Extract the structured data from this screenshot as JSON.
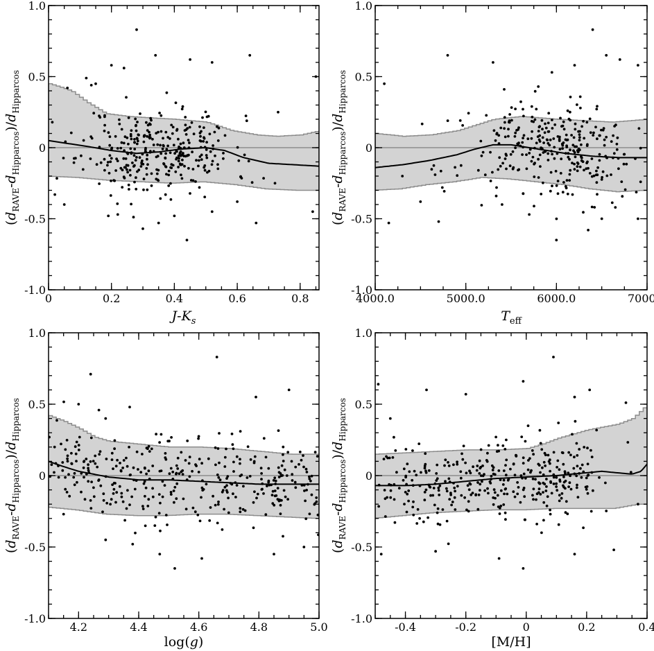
{
  "chart_data": [
    {
      "id": "jk",
      "type": "scatter",
      "xlim": [
        0.0,
        0.86
      ],
      "ylim": [
        -1.0,
        1.0
      ],
      "xticks": [
        0.0,
        0.2,
        0.4,
        0.6,
        0.8
      ],
      "xtick_labels": [
        "0",
        "0.2",
        "0.4",
        "0.6",
        "0.8"
      ],
      "yticks": [
        -1.0,
        -0.5,
        0.0,
        0.5,
        1.0
      ],
      "ytick_labels": [
        "-1.0",
        "-0.5",
        "0",
        "0.5",
        "1.0"
      ],
      "xlabel": "J-K_s",
      "ylabel": "(d_RAVE-d_Hipparcos)/d_Hipparcos",
      "band_upper": [
        [
          0.0,
          0.45
        ],
        [
          0.03,
          0.43
        ],
        [
          0.07,
          0.4
        ],
        [
          0.12,
          0.32
        ],
        [
          0.18,
          0.24
        ],
        [
          0.25,
          0.22
        ],
        [
          0.32,
          0.21
        ],
        [
          0.4,
          0.2
        ],
        [
          0.5,
          0.18
        ],
        [
          0.58,
          0.12
        ],
        [
          0.66,
          0.09
        ],
        [
          0.72,
          0.08
        ],
        [
          0.8,
          0.09
        ],
        [
          0.86,
          0.12
        ]
      ],
      "band_lower": [
        [
          0.0,
          -0.2
        ],
        [
          0.1,
          -0.21
        ],
        [
          0.2,
          -0.23
        ],
        [
          0.3,
          -0.24
        ],
        [
          0.4,
          -0.25
        ],
        [
          0.5,
          -0.24
        ],
        [
          0.6,
          -0.26
        ],
        [
          0.7,
          -0.29
        ],
        [
          0.8,
          -0.3
        ],
        [
          0.86,
          -0.3
        ]
      ],
      "trend": [
        [
          0.0,
          0.05
        ],
        [
          0.06,
          0.03
        ],
        [
          0.12,
          0.01
        ],
        [
          0.2,
          -0.02
        ],
        [
          0.28,
          -0.04
        ],
        [
          0.35,
          -0.03
        ],
        [
          0.42,
          -0.01
        ],
        [
          0.5,
          0.0
        ],
        [
          0.56,
          -0.02
        ],
        [
          0.62,
          -0.07
        ],
        [
          0.7,
          -0.11
        ],
        [
          0.78,
          -0.12
        ],
        [
          0.86,
          -0.13
        ]
      ],
      "points": {
        "outliers": [
          [
            0.28,
            0.83
          ],
          [
            0.34,
            0.65
          ],
          [
            0.64,
            0.65
          ],
          [
            0.2,
            0.58
          ],
          [
            0.45,
            0.62
          ],
          [
            0.12,
            0.49
          ],
          [
            0.24,
            0.56
          ],
          [
            0.52,
            0.6
          ],
          [
            0.06,
            0.42
          ],
          [
            0.3,
            -0.57
          ],
          [
            0.44,
            -0.65
          ],
          [
            0.35,
            -0.53
          ],
          [
            0.66,
            -0.53
          ],
          [
            0.02,
            -0.33
          ],
          [
            0.05,
            -0.4
          ],
          [
            0.84,
            -0.45
          ],
          [
            0.19,
            -0.48
          ],
          [
            0.22,
            -0.47
          ],
          [
            0.73,
            0.25
          ],
          [
            0.85,
            0.5
          ],
          [
            0.4,
            -0.48
          ],
          [
            0.52,
            -0.45
          ],
          [
            0.6,
            -0.38
          ],
          [
            0.15,
            0.45
          ],
          [
            0.72,
            -0.25
          ]
        ],
        "seed": 11,
        "count": 330,
        "dist": "cluster",
        "center": 0.35,
        "spread": 0.12,
        "ystd": 0.15
      }
    },
    {
      "id": "teff",
      "type": "scatter",
      "xlim": [
        4000.0,
        7000.0
      ],
      "ylim": [
        -1.0,
        1.0
      ],
      "xticks": [
        4000.0,
        5000.0,
        6000.0,
        7000.0
      ],
      "xtick_labels": [
        "4000.0",
        "5000.0",
        "6000.0",
        "7000.0"
      ],
      "yticks": [
        -1.0,
        -0.5,
        0.0,
        0.5,
        1.0
      ],
      "ytick_labels": [
        "-1.0",
        "-0.5",
        "0",
        "0.5",
        "1.0"
      ],
      "xlabel": "T_eff",
      "ylabel": "(d_RAVE-d_Hipparcos)/d_Hipparcos",
      "band_upper": [
        [
          4000,
          0.1
        ],
        [
          4300,
          0.08
        ],
        [
          4600,
          0.09
        ],
        [
          4900,
          0.12
        ],
        [
          5100,
          0.16
        ],
        [
          5300,
          0.2
        ],
        [
          5600,
          0.22
        ],
        [
          6000,
          0.2
        ],
        [
          6300,
          0.19
        ],
        [
          6600,
          0.18
        ],
        [
          7000,
          0.2
        ]
      ],
      "band_lower": [
        [
          4000,
          -0.3
        ],
        [
          4300,
          -0.29
        ],
        [
          4600,
          -0.26
        ],
        [
          4900,
          -0.24
        ],
        [
          5200,
          -0.21
        ],
        [
          5500,
          -0.22
        ],
        [
          5800,
          -0.24
        ],
        [
          6100,
          -0.26
        ],
        [
          6400,
          -0.29
        ],
        [
          6700,
          -0.31
        ],
        [
          7000,
          -0.3
        ]
      ],
      "trend": [
        [
          4000,
          -0.14
        ],
        [
          4300,
          -0.12
        ],
        [
          4600,
          -0.09
        ],
        [
          4900,
          -0.05
        ],
        [
          5100,
          -0.01
        ],
        [
          5300,
          0.02
        ],
        [
          5500,
          0.02
        ],
        [
          5800,
          -0.01
        ],
        [
          6100,
          -0.04
        ],
        [
          6400,
          -0.06
        ],
        [
          6700,
          -0.07
        ],
        [
          7000,
          -0.07
        ]
      ],
      "points": {
        "outliers": [
          [
            4800,
            0.65
          ],
          [
            5300,
            0.6
          ],
          [
            6400,
            0.83
          ],
          [
            6550,
            0.65
          ],
          [
            6700,
            0.62
          ],
          [
            6900,
            0.58
          ],
          [
            6200,
            0.58
          ],
          [
            5950,
            0.53
          ],
          [
            5800,
            0.43
          ],
          [
            4150,
            -0.53
          ],
          [
            4700,
            -0.52
          ],
          [
            5700,
            -0.47
          ],
          [
            6000,
            -0.65
          ],
          [
            6350,
            -0.58
          ],
          [
            6500,
            -0.5
          ],
          [
            6900,
            -0.5
          ],
          [
            4300,
            -0.2
          ],
          [
            4100,
            0.45
          ],
          [
            5400,
            -0.4
          ],
          [
            6650,
            -0.42
          ],
          [
            4500,
            -0.38
          ]
        ],
        "seed": 23,
        "count": 310,
        "dist": "cluster",
        "center": 6000.0,
        "spread": 500.0,
        "ystd": 0.16
      }
    },
    {
      "id": "logg",
      "type": "scatter",
      "xlim": [
        4.1,
        5.0
      ],
      "ylim": [
        -1.0,
        1.0
      ],
      "xticks": [
        4.2,
        4.4,
        4.6,
        4.8,
        5.0
      ],
      "xtick_labels": [
        "4.2",
        "4.4",
        "4.6",
        "4.8",
        "5.0"
      ],
      "yticks": [
        -1.0,
        -0.5,
        0.0,
        0.5,
        1.0
      ],
      "ytick_labels": [
        "-1.0",
        "-0.5",
        "0",
        "0.5",
        "1.0"
      ],
      "xlabel": "log(g)",
      "ylabel": "(d_RAVE-d_Hipparcos)/d_Hipparcos",
      "band_upper": [
        [
          4.1,
          0.42
        ],
        [
          4.15,
          0.38
        ],
        [
          4.2,
          0.33
        ],
        [
          4.25,
          0.27
        ],
        [
          4.3,
          0.24
        ],
        [
          4.4,
          0.22
        ],
        [
          4.5,
          0.2
        ],
        [
          4.6,
          0.2
        ],
        [
          4.7,
          0.19
        ],
        [
          4.8,
          0.17
        ],
        [
          4.9,
          0.15
        ],
        [
          5.0,
          0.15
        ]
      ],
      "band_lower": [
        [
          4.1,
          -0.22
        ],
        [
          4.2,
          -0.24
        ],
        [
          4.3,
          -0.27
        ],
        [
          4.4,
          -0.28
        ],
        [
          4.5,
          -0.28
        ],
        [
          4.6,
          -0.27
        ],
        [
          4.7,
          -0.27
        ],
        [
          4.8,
          -0.28
        ],
        [
          4.9,
          -0.29
        ],
        [
          5.0,
          -0.3
        ]
      ],
      "trend": [
        [
          4.1,
          0.1
        ],
        [
          4.14,
          0.07
        ],
        [
          4.2,
          0.03
        ],
        [
          4.3,
          -0.01
        ],
        [
          4.4,
          -0.03
        ],
        [
          4.5,
          -0.03
        ],
        [
          4.6,
          -0.04
        ],
        [
          4.7,
          -0.05
        ],
        [
          4.8,
          -0.06
        ],
        [
          4.9,
          -0.06
        ],
        [
          5.0,
          -0.06
        ]
      ],
      "points": {
        "outliers": [
          [
            4.24,
            0.71
          ],
          [
            4.66,
            0.83
          ],
          [
            4.2,
            0.5
          ],
          [
            4.37,
            0.48
          ],
          [
            4.9,
            0.6
          ],
          [
            4.79,
            0.55
          ],
          [
            4.52,
            -0.65
          ],
          [
            4.47,
            -0.55
          ],
          [
            4.29,
            -0.45
          ],
          [
            4.61,
            -0.58
          ],
          [
            4.38,
            -0.48
          ],
          [
            4.85,
            -0.55
          ],
          [
            4.95,
            -0.5
          ],
          [
            4.15,
            -0.27
          ],
          [
            4.12,
            0.2
          ],
          [
            4.29,
            0.4
          ]
        ],
        "seed": 37,
        "count": 360,
        "dist": "uniform",
        "center": 4.55,
        "spread": 0.45,
        "ystd": 0.15
      }
    },
    {
      "id": "mh",
      "type": "scatter",
      "xlim": [
        -0.5,
        0.4
      ],
      "ylim": [
        -1.0,
        1.0
      ],
      "xticks": [
        -0.4,
        -0.2,
        0.0,
        0.2,
        0.4
      ],
      "xtick_labels": [
        "-0.4",
        "-0.2",
        "0",
        "0.2",
        "0.4"
      ],
      "yticks": [
        -1.0,
        -0.5,
        0.0,
        0.5,
        1.0
      ],
      "ytick_labels": [
        "-1.0",
        "-0.5",
        "0",
        "0.5",
        "1.0"
      ],
      "xlabel": "[M/H]",
      "ylabel": "(d_RAVE-d_Hipparcos)/d_Hipparcos",
      "band_upper": [
        [
          -0.5,
          0.15
        ],
        [
          -0.4,
          0.16
        ],
        [
          -0.3,
          0.17
        ],
        [
          -0.2,
          0.18
        ],
        [
          -0.1,
          0.18
        ],
        [
          0.0,
          0.19
        ],
        [
          0.05,
          0.22
        ],
        [
          0.1,
          0.26
        ],
        [
          0.2,
          0.32
        ],
        [
          0.3,
          0.36
        ],
        [
          0.35,
          0.4
        ],
        [
          0.38,
          0.46
        ],
        [
          0.4,
          0.5
        ]
      ],
      "band_lower": [
        [
          -0.5,
          -0.3
        ],
        [
          -0.4,
          -0.28
        ],
        [
          -0.3,
          -0.26
        ],
        [
          -0.2,
          -0.25
        ],
        [
          -0.1,
          -0.24
        ],
        [
          0.0,
          -0.24
        ],
        [
          0.1,
          -0.23
        ],
        [
          0.2,
          -0.23
        ],
        [
          0.3,
          -0.23
        ],
        [
          0.38,
          -0.2
        ],
        [
          0.4,
          -0.2
        ]
      ],
      "trend": [
        [
          -0.5,
          -0.07
        ],
        [
          -0.4,
          -0.07
        ],
        [
          -0.3,
          -0.06
        ],
        [
          -0.2,
          -0.04
        ],
        [
          -0.1,
          -0.02
        ],
        [
          0.0,
          -0.01
        ],
        [
          0.1,
          0.0
        ],
        [
          0.2,
          0.02
        ],
        [
          0.25,
          0.03
        ],
        [
          0.3,
          0.02
        ],
        [
          0.35,
          0.01
        ],
        [
          0.38,
          0.03
        ],
        [
          0.4,
          0.08
        ]
      ],
      "points": {
        "outliers": [
          [
            0.09,
            0.83
          ],
          [
            -0.01,
            0.66
          ],
          [
            -0.33,
            0.6
          ],
          [
            -0.49,
            0.64
          ],
          [
            0.21,
            0.6
          ],
          [
            0.16,
            0.55
          ],
          [
            0.33,
            0.51
          ],
          [
            -0.2,
            0.57
          ],
          [
            -0.01,
            -0.65
          ],
          [
            -0.3,
            -0.53
          ],
          [
            0.16,
            -0.55
          ],
          [
            0.29,
            -0.52
          ],
          [
            -0.09,
            -0.58
          ],
          [
            -0.48,
            -0.55
          ],
          [
            0.37,
            -0.2
          ],
          [
            -0.45,
            0.4
          ]
        ],
        "seed": 53,
        "count": 360,
        "dist": "skewleft",
        "center": -0.2,
        "spread": 0.3,
        "ystd": 0.15
      }
    }
  ]
}
